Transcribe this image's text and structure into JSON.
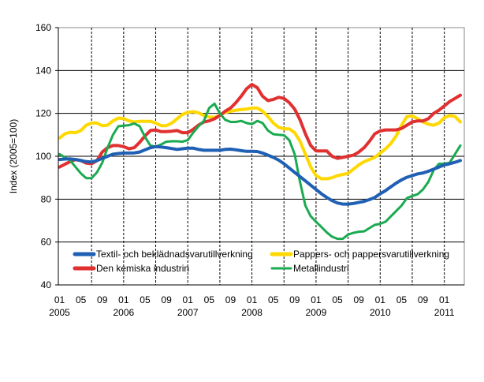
{
  "chart_data": {
    "type": "line",
    "title": "",
    "xlabel": "",
    "ylabel": "Index (2005=100)",
    "ylim": [
      40,
      160
    ],
    "yticks": [
      40,
      60,
      80,
      100,
      120,
      140,
      160
    ],
    "x_start": "2005-01",
    "x_label_months": [
      "01",
      "05",
      "09",
      "01",
      "05",
      "09",
      "01",
      "05",
      "09",
      "01",
      "05",
      "09",
      "01",
      "05",
      "09",
      "01",
      "05",
      "09",
      "01"
    ],
    "x_label_years": [
      "2005",
      "2006",
      "2007",
      "2008",
      "2009",
      "2010",
      "2011"
    ],
    "grid": "horizontal solid, vertical dashed",
    "legend": "bottom-inside",
    "series": [
      {
        "name": "Textil- och beklädnadsvarutillverkning",
        "color": "#1f5fb4",
        "values": [
          98.5,
          98.7,
          98.8,
          98.5,
          98,
          97.5,
          97.3,
          98,
          99,
          100,
          101,
          101.3,
          101.5,
          101.5,
          101.6,
          102,
          103,
          104,
          104.5,
          104.3,
          104,
          103.6,
          103.2,
          103.5,
          103.8,
          103.8,
          103.2,
          102.8,
          102.8,
          102.8,
          102.8,
          103.2,
          103.3,
          103,
          102.6,
          102.3,
          102.3,
          102.2,
          101.5,
          100.5,
          99.5,
          98.2,
          96.5,
          94.5,
          92.5,
          90.5,
          88.5,
          86.5,
          84.5,
          82.5,
          80.8,
          79.3,
          78.2,
          77.7,
          77.7,
          78,
          78.5,
          79,
          79.8,
          80.8,
          82.5,
          84,
          85.8,
          87.5,
          89,
          90.2,
          91,
          91.8,
          92.2,
          93,
          94,
          95,
          96,
          96.5,
          97.2,
          98
        ]
      },
      {
        "name": "Pappers- och pappersvarutillverkning",
        "color": "#ffd800",
        "values": [
          108.5,
          110.5,
          111.2,
          111,
          112,
          114.5,
          115.5,
          115.5,
          114.3,
          114.5,
          116.5,
          117.8,
          117.6,
          116.5,
          116,
          116.3,
          116.3,
          116.3,
          115.5,
          114.3,
          114.3,
          115.5,
          117.5,
          119.5,
          120.5,
          120.8,
          120.3,
          119,
          118.3,
          118.2,
          119,
          120.5,
          121,
          121.5,
          121.8,
          122,
          122.5,
          122.5,
          121,
          118.5,
          115.5,
          113.5,
          112.8,
          112.8,
          111,
          107,
          101,
          95,
          91,
          89.5,
          89.5,
          90,
          91,
          91.5,
          92,
          94,
          96,
          97.5,
          98.5,
          99.5,
          101.5,
          103.5,
          106,
          109.5,
          114.5,
          118.5,
          118.8,
          117.5,
          116,
          115,
          114.5,
          115.5,
          118,
          119,
          118.5,
          116
        ]
      },
      {
        "name": "Den kemiska industrin",
        "color": "#e03030",
        "values": [
          95,
          96.3,
          97.5,
          98.5,
          98,
          96.8,
          96.5,
          98,
          102,
          104,
          105,
          105,
          104.5,
          103.5,
          104,
          106.5,
          109.5,
          112,
          112.3,
          111.5,
          111.5,
          111.7,
          112,
          111,
          111,
          112.5,
          114.5,
          116,
          116.5,
          117.5,
          119,
          121,
          122.5,
          125,
          128,
          131.5,
          133.5,
          132,
          128,
          126,
          126.5,
          127.5,
          127,
          125,
          122,
          117,
          110.5,
          105,
          102.5,
          102.5,
          102.5,
          100,
          99,
          99.5,
          100,
          100.5,
          102,
          104,
          107,
          110.5,
          111.8,
          112.3,
          112.3,
          112.3,
          113,
          114.5,
          116,
          116.5,
          116.5,
          117.5,
          120,
          121.5,
          123.5,
          125.5,
          127,
          128.5
        ]
      },
      {
        "name": "Metallindustri",
        "color": "#1aaa50",
        "values": [
          101,
          99.5,
          98,
          95,
          92,
          89.8,
          89.8,
          92.5,
          97,
          104,
          110,
          114,
          114.3,
          114.5,
          115.3,
          114,
          109,
          105,
          104.5,
          105.5,
          106.8,
          107,
          107,
          106.8,
          107.5,
          111,
          114,
          116.5,
          122.5,
          124.5,
          120,
          117,
          116,
          116,
          116.5,
          115.5,
          115,
          116.5,
          115.5,
          112,
          110.3,
          110,
          109.8,
          107.5,
          101,
          88,
          77,
          72,
          69.5,
          67,
          64.5,
          62.5,
          61.5,
          61.5,
          63.5,
          64.3,
          64.8,
          65,
          66.5,
          68,
          68.5,
          69.5,
          72,
          74.5,
          77,
          80.5,
          81.5,
          82.3,
          84.5,
          88,
          93.5,
          96.5,
          96.5,
          97,
          101,
          105
        ]
      }
    ]
  }
}
